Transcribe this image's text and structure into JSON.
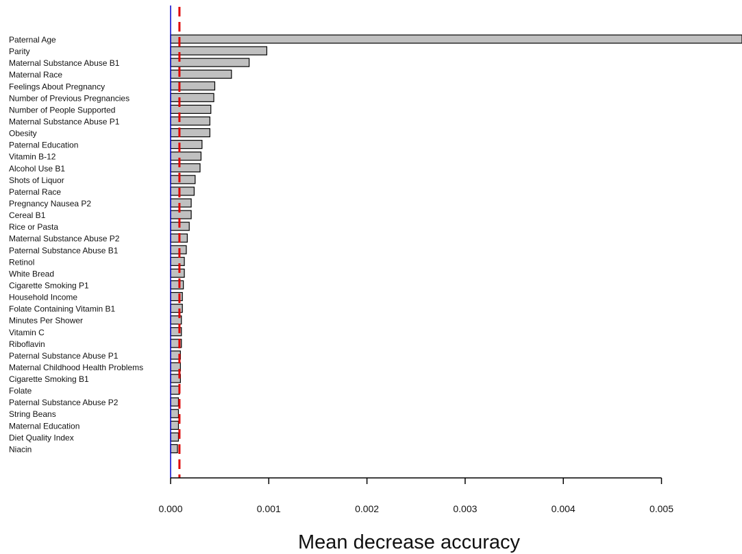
{
  "chart_data": {
    "type": "bar",
    "orientation": "horizontal",
    "xlabel": "Mean decrease accuracy",
    "ylabel": "",
    "title": "",
    "xlim": [
      0,
      0.00582
    ],
    "xticks": [
      0.0,
      0.001,
      0.002,
      0.003,
      0.004,
      0.005
    ],
    "xtick_labels": [
      "0.000",
      "0.001",
      "0.002",
      "0.003",
      "0.004",
      "0.005"
    ],
    "grid": false,
    "legend": "none",
    "bar_color": "#c0c0c0",
    "bar_edge_color": "#000000",
    "zero_line_color": "#0000cc",
    "threshold_line": {
      "value": 9e-05,
      "color": "#e00000",
      "style": "dashed"
    },
    "categories": [
      "Paternal Age",
      "Parity",
      "Maternal Substance Abuse B1",
      "Maternal Race",
      "Feelings About Pregnancy",
      "Number of Previous Pregnancies",
      "Number of People Supported",
      "Maternal Substance Abuse P1",
      "Obesity",
      "Paternal Education",
      "Vitamin B-12",
      "Alcohol Use B1",
      "Shots of Liquor",
      "Paternal Race",
      "Pregnancy Nausea P2",
      "Cereal B1",
      "Rice or Pasta",
      "Maternal Substance Abuse P2",
      "Paternal Substance Abuse B1",
      "Retinol",
      "White Bread",
      "Cigarette Smoking P1",
      "Household Income",
      "Folate Containing Vitamin B1",
      "Minutes Per Shower",
      "Vitamin C",
      "Riboflavin",
      "Paternal Substance Abuse P1",
      "Maternal Childhood Health Problems",
      "Cigarette Smoking B1",
      "Folate",
      "Paternal Substance Abuse P2",
      "String Beans",
      "Maternal Education",
      "Diet Quality Index",
      "Niacin"
    ],
    "values": [
      0.0059,
      0.00098,
      0.0008,
      0.00062,
      0.00045,
      0.00044,
      0.00041,
      0.0004,
      0.0004,
      0.00032,
      0.00031,
      0.0003,
      0.00025,
      0.00024,
      0.00021,
      0.00021,
      0.00019,
      0.00017,
      0.00016,
      0.00014,
      0.00014,
      0.00013,
      0.00012,
      0.00012,
      0.00011,
      0.00011,
      0.00011,
      0.0001,
      0.0001,
      0.0001,
      9e-05,
      8e-05,
      8e-05,
      8e-05,
      8e-05,
      7e-05
    ]
  }
}
